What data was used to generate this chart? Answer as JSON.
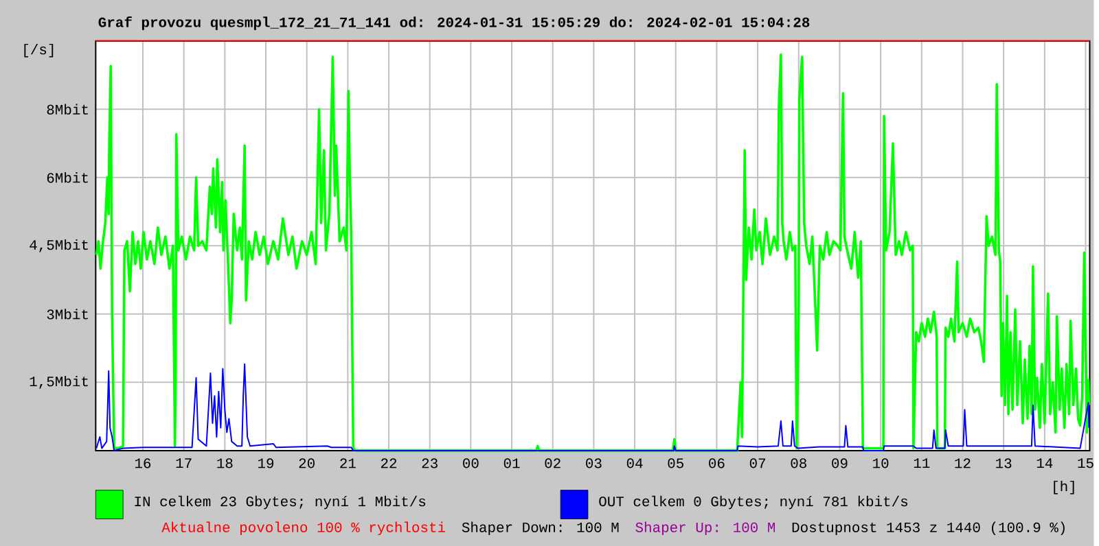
{
  "chart_data": {
    "type": "line",
    "title": "Graf provozu quesmpl_172_21_71_141 od: 2024-01-31 15:05:29 do: 2024-02-01 15:04:28",
    "ylabel": "[/s]",
    "xlabel": "[h]",
    "xlim": [
      "2024-01-31T14:51",
      "2024-02-01T15:06"
    ],
    "ylim": [
      0,
      9
    ],
    "xticks": [
      {
        "value": "2024-01-31T16:00",
        "label": "16"
      },
      {
        "value": "2024-01-31T17:00",
        "label": "17"
      },
      {
        "value": "2024-01-31T18:00",
        "label": "18"
      },
      {
        "value": "2024-01-31T19:00",
        "label": "19"
      },
      {
        "value": "2024-01-31T20:00",
        "label": "20"
      },
      {
        "value": "2024-01-31T21:00",
        "label": "21"
      },
      {
        "value": "2024-01-31T22:00",
        "label": "22"
      },
      {
        "value": "2024-01-31T23:00",
        "label": "23"
      },
      {
        "value": "2024-02-01T00:00",
        "label": "00"
      },
      {
        "value": "2024-02-01T01:00",
        "label": "01"
      },
      {
        "value": "2024-02-01T02:00",
        "label": "02"
      },
      {
        "value": "2024-02-01T03:00",
        "label": "03"
      },
      {
        "value": "2024-02-01T04:00",
        "label": "04"
      },
      {
        "value": "2024-02-01T05:00",
        "label": "05"
      },
      {
        "value": "2024-02-01T06:00",
        "label": "06"
      },
      {
        "value": "2024-02-01T07:00",
        "label": "07"
      },
      {
        "value": "2024-02-01T08:00",
        "label": "08"
      },
      {
        "value": "2024-02-01T09:00",
        "label": "09"
      },
      {
        "value": "2024-02-01T10:00",
        "label": "10"
      },
      {
        "value": "2024-02-01T11:00",
        "label": "11"
      },
      {
        "value": "2024-02-01T12:00",
        "label": "12"
      },
      {
        "value": "2024-02-01T13:00",
        "label": "13"
      },
      {
        "value": "2024-02-01T14:00",
        "label": "14"
      },
      {
        "value": "2024-02-01T15:00",
        "label": "15"
      }
    ],
    "yticks": [
      {
        "value": 1.5,
        "label": "1,5Mbit"
      },
      {
        "value": 3,
        "label": "3Mbit"
      },
      {
        "value": 4.5,
        "label": "4,5Mbit"
      },
      {
        "value": 6,
        "label": "6Mbit"
      },
      {
        "value": 7.5,
        "label": "8Mbit"
      }
    ],
    "grid": true,
    "legend": "bottom",
    "ref_lines": [
      {
        "axis": "y",
        "value": 9,
        "color": "#ff0000"
      }
    ],
    "series": [
      {
        "name": "IN celkem 23 Gbytes; nyní 1 Mbit/s",
        "color": "#00ff00",
        "x": [
          "2024-01-31T14:52",
          "2024-01-31T14:55",
          "2024-01-31T14:58",
          "2024-01-31T15:01",
          "2024-01-31T15:05",
          "2024-01-31T15:08",
          "2024-01-31T15:10",
          "2024-01-31T15:11",
          "2024-01-31T15:13",
          "2024-01-31T15:15",
          "2024-01-31T15:18",
          "2024-01-31T15:24",
          "2024-01-31T15:31",
          "2024-01-31T15:33",
          "2024-01-31T15:37",
          "2024-01-31T15:41",
          "2024-01-31T15:45",
          "2024-01-31T15:49",
          "2024-01-31T15:53",
          "2024-01-31T15:57",
          "2024-01-31T16:01",
          "2024-01-31T16:06",
          "2024-01-31T16:11",
          "2024-01-31T16:17",
          "2024-01-31T16:22",
          "2024-01-31T16:27",
          "2024-01-31T16:33",
          "2024-01-31T16:39",
          "2024-01-31T16:44",
          "2024-01-31T16:47",
          "2024-01-31T16:48",
          "2024-01-31T16:49",
          "2024-01-31T16:52",
          "2024-01-31T16:57",
          "2024-01-31T17:03",
          "2024-01-31T17:09",
          "2024-01-31T17:15",
          "2024-01-31T17:18",
          "2024-01-31T17:21",
          "2024-01-31T17:27",
          "2024-01-31T17:33",
          "2024-01-31T17:38",
          "2024-01-31T17:41",
          "2024-01-31T17:43",
          "2024-01-31T17:47",
          "2024-01-31T17:49",
          "2024-01-31T17:53",
          "2024-01-31T17:56",
          "2024-01-31T17:58",
          "2024-01-31T18:01",
          "2024-01-31T18:05",
          "2024-01-31T18:08",
          "2024-01-31T18:10",
          "2024-01-31T18:13",
          "2024-01-31T18:18",
          "2024-01-31T18:22",
          "2024-01-31T18:25",
          "2024-01-31T18:29",
          "2024-01-31T18:31",
          "2024-01-31T18:35",
          "2024-01-31T18:40",
          "2024-01-31T18:45",
          "2024-01-31T18:51",
          "2024-01-31T18:57",
          "2024-01-31T19:03",
          "2024-01-31T19:11",
          "2024-01-31T19:18",
          "2024-01-31T19:25",
          "2024-01-31T19:33",
          "2024-01-31T19:39",
          "2024-01-31T19:45",
          "2024-01-31T19:53",
          "2024-01-31T20:00",
          "2024-01-31T20:07",
          "2024-01-31T20:13",
          "2024-01-31T20:18",
          "2024-01-31T20:21",
          "2024-01-31T20:25",
          "2024-01-31T20:28",
          "2024-01-31T20:33",
          "2024-01-31T20:38",
          "2024-01-31T20:41",
          "2024-01-31T20:43",
          "2024-01-31T20:48",
          "2024-01-31T20:54",
          "2024-01-31T20:58",
          "2024-01-31T21:01",
          "2024-01-31T21:03",
          "2024-01-31T21:05",
          "2024-01-31T21:08",
          "2024-01-31T21:12",
          "2024-02-01T01:36",
          "2024-02-01T01:38",
          "2024-02-01T01:40",
          "2024-02-01T04:56",
          "2024-02-01T04:58",
          "2024-02-01T05:00",
          "2024-02-01T06:30",
          "2024-02-01T06:35",
          "2024-02-01T06:37",
          "2024-02-01T06:41",
          "2024-02-01T06:43",
          "2024-02-01T06:47",
          "2024-02-01T06:51",
          "2024-02-01T06:55",
          "2024-02-01T06:58",
          "2024-02-01T07:03",
          "2024-02-01T07:07",
          "2024-02-01T07:12",
          "2024-02-01T07:18",
          "2024-02-01T07:24",
          "2024-02-01T07:29",
          "2024-02-01T07:31",
          "2024-02-01T07:34",
          "2024-02-01T07:36",
          "2024-02-01T07:38",
          "2024-02-01T07:42",
          "2024-02-01T07:47",
          "2024-02-01T07:51",
          "2024-02-01T07:55",
          "2024-02-01T07:57",
          "2024-02-01T08:00",
          "2024-02-01T08:01",
          "2024-02-01T08:05",
          "2024-02-01T08:08",
          "2024-02-01T08:11",
          "2024-02-01T08:16",
          "2024-02-01T08:20",
          "2024-02-01T08:25",
          "2024-02-01T08:27",
          "2024-02-01T08:31",
          "2024-02-01T08:36",
          "2024-02-01T08:41",
          "2024-02-01T08:45",
          "2024-02-01T08:51",
          "2024-02-01T08:57",
          "2024-02-01T09:01",
          "2024-02-01T09:05",
          "2024-02-01T09:07",
          "2024-02-01T09:11",
          "2024-02-01T09:17",
          "2024-02-01T09:22",
          "2024-02-01T09:27",
          "2024-02-01T09:31",
          "2024-02-01T09:34",
          "2024-02-01T10:04",
          "2024-02-01T10:05",
          "2024-02-01T10:08",
          "2024-02-01T10:13",
          "2024-02-01T10:18",
          "2024-02-01T10:22",
          "2024-02-01T10:27",
          "2024-02-01T10:31",
          "2024-02-01T10:37",
          "2024-02-01T10:43",
          "2024-02-01T10:47",
          "2024-02-01T10:48",
          "2024-02-01T10:52",
          "2024-02-01T10:56",
          "2024-02-01T11:00",
          "2024-02-01T11:05",
          "2024-02-01T11:09",
          "2024-02-01T11:13",
          "2024-02-01T11:18",
          "2024-02-01T11:22",
          "2024-02-01T11:23",
          "2024-02-01T11:34",
          "2024-02-01T11:35",
          "2024-02-01T11:39",
          "2024-02-01T11:43",
          "2024-02-01T11:48",
          "2024-02-01T11:52",
          "2024-02-01T11:54",
          "2024-02-01T12:00",
          "2024-02-01T12:06",
          "2024-02-01T12:11",
          "2024-02-01T12:17",
          "2024-02-01T12:23",
          "2024-02-01T12:27",
          "2024-02-01T12:31",
          "2024-02-01T12:35",
          "2024-02-01T12:38",
          "2024-02-01T12:43",
          "2024-02-01T12:48",
          "2024-02-01T12:50",
          "2024-02-01T12:53",
          "2024-02-01T12:55",
          "2024-02-01T12:57",
          "2024-02-01T12:59",
          "2024-02-01T13:02",
          "2024-02-01T13:05",
          "2024-02-01T13:07",
          "2024-02-01T13:10",
          "2024-02-01T13:13",
          "2024-02-01T13:17",
          "2024-02-01T13:20",
          "2024-02-01T13:24",
          "2024-02-01T13:28",
          "2024-02-01T13:31",
          "2024-02-01T13:35",
          "2024-02-01T13:38",
          "2024-02-01T13:41",
          "2024-02-01T13:43",
          "2024-02-01T13:46",
          "2024-02-01T13:49",
          "2024-02-01T13:53",
          "2024-02-01T13:56",
          "2024-02-01T14:00",
          "2024-02-01T14:05",
          "2024-02-01T14:08",
          "2024-02-01T14:12",
          "2024-02-01T14:16",
          "2024-02-01T14:18",
          "2024-02-01T14:22",
          "2024-02-01T14:25",
          "2024-02-01T14:29",
          "2024-02-01T14:32",
          "2024-02-01T14:36",
          "2024-02-01T14:38",
          "2024-02-01T14:42",
          "2024-02-01T14:46",
          "2024-02-01T14:49",
          "2024-02-01T14:52",
          "2024-02-01T14:55",
          "2024-02-01T14:58",
          "2024-02-01T15:02",
          "2024-02-01T15:04",
          "2024-02-01T15:05"
        ],
        "values": [
          4.3,
          4.6,
          4.0,
          4.5,
          5.0,
          6.0,
          5.2,
          6.9,
          8.45,
          3.0,
          0.05,
          0.05,
          0.1,
          4.4,
          4.6,
          3.5,
          4.8,
          4.1,
          4.6,
          4.0,
          4.8,
          4.2,
          4.6,
          4.1,
          4.9,
          4.3,
          4.7,
          4.0,
          4.5,
          0.1,
          1.5,
          6.95,
          4.4,
          4.7,
          4.2,
          4.7,
          4.4,
          6.0,
          4.5,
          4.6,
          4.4,
          5.8,
          5.2,
          6.2,
          4.9,
          6.4,
          4.8,
          5.9,
          4.4,
          5.5,
          4.0,
          2.8,
          3.3,
          5.2,
          4.4,
          4.9,
          4.2,
          6.7,
          3.3,
          4.6,
          4.2,
          4.8,
          4.3,
          4.7,
          4.1,
          4.6,
          4.2,
          5.1,
          4.3,
          4.7,
          4.0,
          4.6,
          4.3,
          4.8,
          4.1,
          7.5,
          5.0,
          6.6,
          4.4,
          5.2,
          8.65,
          5.6,
          6.7,
          4.6,
          4.9,
          4.4,
          7.9,
          6.0,
          4.8,
          0.05,
          0,
          0,
          0.1,
          0,
          0,
          0.25,
          0,
          0,
          1.5,
          0.3,
          6.6,
          3.75,
          4.9,
          4.2,
          5.3,
          4.4,
          4.8,
          4.1,
          5.1,
          4.3,
          4.7,
          4.4,
          7.55,
          8.7,
          5.0,
          4.6,
          4.2,
          4.8,
          4.4,
          4.5,
          0.05,
          3.0,
          7.75,
          8.65,
          5.0,
          4.5,
          4.1,
          4.7,
          2.95,
          2.2,
          4.5,
          4.2,
          4.8,
          4.3,
          4.6,
          4.5,
          4.4,
          7.85,
          4.7,
          4.4,
          4.0,
          4.8,
          3.8,
          4.6,
          0.05,
          0.05,
          7.35,
          4.4,
          4.8,
          6.75,
          4.3,
          4.6,
          4.3,
          4.8,
          4.4,
          4.5,
          0.05,
          2.6,
          2.4,
          2.8,
          2.5,
          2.9,
          2.6,
          3.05,
          2.5,
          0.05,
          0.05,
          2.7,
          2.5,
          2.9,
          2.4,
          4.15,
          2.6,
          2.8,
          2.5,
          2.9,
          2.6,
          2.7,
          2.4,
          1.95,
          5.15,
          4.5,
          4.7,
          4.3,
          8.05,
          4.4,
          4.15,
          1.2,
          2.8,
          1.0,
          3.4,
          0.8,
          2.6,
          0.9,
          3.1,
          1.0,
          2.4,
          0.6,
          2.0,
          0.7,
          2.3,
          0.8,
          4.05,
          0.9,
          1.6,
          0.5,
          1.9,
          0.6,
          3.45,
          0.8,
          1.5,
          0.4,
          2.95,
          0.9,
          1.8,
          0.5,
          1.9,
          0.8,
          2.85,
          1.0,
          1.8,
          0.7,
          0.55,
          1.2,
          4.35,
          0.4,
          1.55,
          1.0
        ]
      },
      {
        "name": "OUT celkem 0 Gbytes; nyní 781 kbit/s",
        "color": "#0000ff",
        "x": [
          "2024-01-31T14:52",
          "2024-01-31T14:57",
          "2024-01-31T15:00",
          "2024-01-31T15:07",
          "2024-01-31T15:10",
          "2024-01-31T15:12",
          "2024-01-31T15:15",
          "2024-01-31T15:18",
          "2024-01-31T15:31",
          "2024-01-31T16:00",
          "2024-01-31T16:47",
          "2024-01-31T17:12",
          "2024-01-31T17:18",
          "2024-01-31T17:21",
          "2024-01-31T17:33",
          "2024-01-31T17:36",
          "2024-01-31T17:39",
          "2024-01-31T17:42",
          "2024-01-31T17:45",
          "2024-01-31T17:48",
          "2024-01-31T17:51",
          "2024-01-31T17:54",
          "2024-01-31T17:57",
          "2024-01-31T18:00",
          "2024-01-31T18:03",
          "2024-01-31T18:06",
          "2024-01-31T18:10",
          "2024-01-31T18:18",
          "2024-01-31T18:25",
          "2024-01-31T18:27",
          "2024-01-31T18:29",
          "2024-01-31T18:33",
          "2024-01-31T18:37",
          "2024-01-31T19:11",
          "2024-01-31T19:15",
          "2024-01-31T20:30",
          "2024-01-31T20:36",
          "2024-01-31T21:05",
          "2024-01-31T21:08",
          "2024-02-01T04:57",
          "2024-02-01T04:58",
          "2024-02-01T05:00",
          "2024-02-01T06:30",
          "2024-02-01T06:31",
          "2024-02-01T07:00",
          "2024-02-01T07:30",
          "2024-02-01T07:34",
          "2024-02-01T07:37",
          "2024-02-01T07:49",
          "2024-02-01T07:51",
          "2024-02-01T07:54",
          "2024-02-01T07:59",
          "2024-02-01T08:30",
          "2024-02-01T09:07",
          "2024-02-01T09:09",
          "2024-02-01T09:12",
          "2024-02-01T09:34",
          "2024-02-01T09:35",
          "2024-02-01T10:04",
          "2024-02-01T10:05",
          "2024-02-01T10:48",
          "2024-02-01T10:52",
          "2024-02-01T11:16",
          "2024-02-01T11:18",
          "2024-02-01T11:21",
          "2024-02-01T11:34",
          "2024-02-01T11:35",
          "2024-02-01T11:39",
          "2024-02-01T12:01",
          "2024-02-01T12:03",
          "2024-02-01T12:06",
          "2024-02-01T12:36",
          "2024-02-01T13:41",
          "2024-02-01T13:43",
          "2024-02-01T13:46",
          "2024-02-01T14:52",
          "2024-02-01T14:58",
          "2024-02-01T15:04",
          "2024-02-01T15:05"
        ],
        "values": [
          0.05,
          0.3,
          0.05,
          0.2,
          1.75,
          0.5,
          0.3,
          0,
          0.05,
          0.07,
          0.07,
          0.07,
          1.6,
          0.25,
          0.1,
          0.9,
          1.7,
          0.6,
          1.2,
          0.3,
          1.3,
          0.5,
          1.8,
          0.9,
          0.4,
          0.7,
          0.2,
          0.1,
          0.1,
          1.2,
          1.9,
          0.3,
          0.1,
          0.15,
          0.07,
          0.1,
          0.07,
          0.07,
          0,
          0,
          0.1,
          0,
          0,
          0.1,
          0.08,
          0.1,
          0.65,
          0.1,
          0.1,
          0.65,
          0.1,
          0.05,
          0.08,
          0.08,
          0.55,
          0.08,
          0.08,
          0,
          0,
          0.1,
          0.1,
          0.05,
          0.05,
          0.45,
          0.05,
          0.05,
          0.45,
          0.1,
          0.1,
          0.9,
          0.1,
          0.1,
          0.1,
          1.0,
          0.1,
          0.05,
          0.55,
          1.05,
          0.5
        ]
      }
    ],
    "annotations": [
      "Aktualne povoleno 100 % rychlosti",
      "Shaper Down: 100 M",
      "Shaper Up: 100 M",
      "Dostupnost 1453 z 1440 (100.9 %)"
    ]
  }
}
